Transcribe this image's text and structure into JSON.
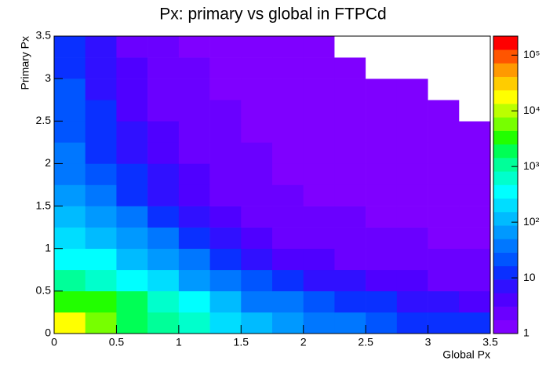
{
  "chart_data": {
    "type": "heatmap",
    "title": "Px: primary vs global in FTPCd",
    "x_label": "Global Px",
    "y_label": "Primary Px",
    "x_bins": [
      0,
      0.25,
      0.5,
      0.75,
      1,
      1.25,
      1.5,
      1.75,
      2,
      2.25,
      2.5,
      2.75,
      3,
      3.25,
      3.5
    ],
    "y_bins": [
      0,
      0.25,
      0.5,
      0.75,
      1,
      1.25,
      1.5,
      1.75,
      2,
      2.25,
      2.5,
      2.75,
      3,
      3.25,
      3.5
    ],
    "z": [
      [
        20000,
        5000,
        2000,
        1000,
        500,
        200,
        100,
        60,
        40,
        30,
        20,
        15,
        12,
        10
      ],
      [
        3000,
        3000,
        1500,
        600,
        300,
        120,
        50,
        30,
        20,
        15,
        10,
        8,
        6,
        5
      ],
      [
        1000,
        800,
        400,
        200,
        80,
        40,
        20,
        12,
        8,
        6,
        5,
        4,
        3,
        3
      ],
      [
        400,
        300,
        150,
        60,
        30,
        15,
        8,
        5,
        4,
        3,
        3,
        2,
        2,
        2
      ],
      [
        200,
        150,
        70,
        30,
        15,
        8,
        5,
        3,
        3,
        2,
        2,
        2,
        1,
        1
      ],
      [
        120,
        70,
        30,
        15,
        8,
        5,
        3,
        2,
        2,
        2,
        1,
        1,
        1,
        1
      ],
      [
        70,
        40,
        15,
        8,
        5,
        3,
        2,
        2,
        1,
        1,
        1,
        1,
        1,
        1
      ],
      [
        40,
        20,
        10,
        6,
        4,
        3,
        2,
        1,
        1,
        1,
        1,
        1,
        1,
        1
      ],
      [
        30,
        15,
        8,
        4,
        3,
        2,
        2,
        1,
        1,
        1,
        1,
        1,
        1,
        1
      ],
      [
        25,
        12,
        6,
        4,
        3,
        2,
        1,
        1,
        1,
        1,
        1,
        1,
        1,
        1
      ],
      [
        20,
        10,
        5,
        3,
        2,
        2,
        1,
        1,
        1,
        1,
        1,
        1,
        1,
        0
      ],
      [
        18,
        8,
        4,
        3,
        2,
        1,
        1,
        1,
        1,
        1,
        1,
        1,
        0,
        0
      ],
      [
        15,
        7,
        4,
        2,
        2,
        1,
        1,
        1,
        1,
        1,
        0,
        0,
        0,
        0
      ],
      [
        12,
        6,
        3,
        2,
        1,
        1,
        1,
        1,
        1,
        0,
        0,
        0,
        0,
        0
      ]
    ],
    "xlim": [
      0,
      3.5
    ],
    "ylim": [
      0,
      3.5
    ],
    "xticks": [
      0,
      0.5,
      1,
      1.5,
      2,
      2.5,
      3,
      3.5
    ],
    "yticks": [
      0,
      0.5,
      1,
      1.5,
      2,
      2.5,
      3,
      3.5
    ],
    "zlim": [
      1,
      220000
    ],
    "zlog": true,
    "zticks": [
      1,
      10,
      {
        "value": 100,
        "label": "10²"
      },
      {
        "value": 1000,
        "label": "10³"
      },
      {
        "value": 10000,
        "label": "10⁴"
      },
      {
        "value": 100000,
        "label": "10⁵"
      }
    ],
    "palette": [
      "#7f00ff",
      "#6a00ff",
      "#4f00ff",
      "#3010ff",
      "#0a30ff",
      "#0055ff",
      "#0077ff",
      "#0099ff",
      "#00bbff",
      "#00ddff",
      "#00ffff",
      "#00ffcc",
      "#00ff99",
      "#00ff55",
      "#22ff00",
      "#77ff00",
      "#bbff00",
      "#ffff00",
      "#ffcc00",
      "#ff9900",
      "#ff5500",
      "#ff0000"
    ]
  }
}
